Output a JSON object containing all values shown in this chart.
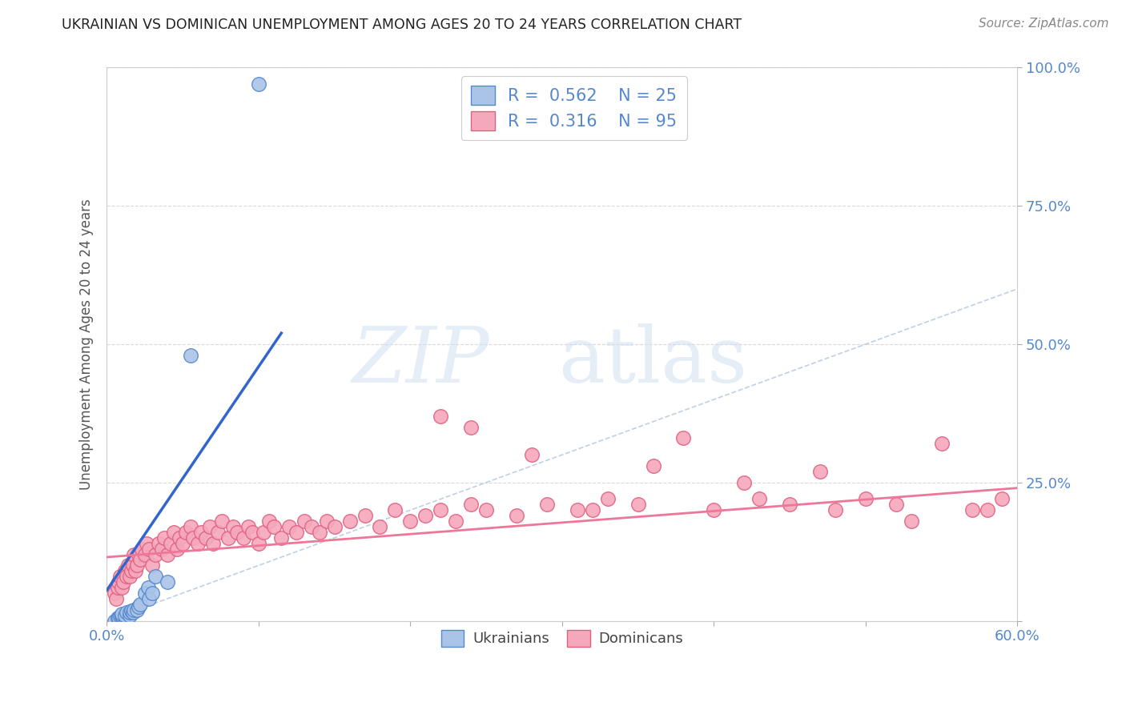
{
  "title": "UKRAINIAN VS DOMINICAN UNEMPLOYMENT AMONG AGES 20 TO 24 YEARS CORRELATION CHART",
  "source": "Source: ZipAtlas.com",
  "ylabel": "Unemployment Among Ages 20 to 24 years",
  "xlim": [
    0.0,
    0.6
  ],
  "ylim": [
    0.0,
    1.0
  ],
  "xtick_positions": [
    0.0,
    0.1,
    0.2,
    0.3,
    0.4,
    0.5,
    0.6
  ],
  "xtick_labels": [
    "0.0%",
    "",
    "",
    "",
    "",
    "",
    "60.0%"
  ],
  "ytick_positions": [
    0.0,
    0.25,
    0.5,
    0.75,
    1.0
  ],
  "ytick_labels": [
    "",
    "25.0%",
    "50.0%",
    "75.0%",
    "100.0%"
  ],
  "background_color": "#ffffff",
  "grid_color": "#d0d0d0",
  "ukrainian_color": "#aac4e8",
  "dominican_color": "#f5a8bc",
  "ukrainian_edge_color": "#5588cc",
  "dominican_edge_color": "#e06080",
  "trend_color_blue": "#3366cc",
  "trend_color_pink": "#ee7799",
  "diagonal_color": "#b0c4de",
  "tick_color": "#5588cc",
  "legend_label_ukr": "Ukrainians",
  "legend_label_dom": "Dominicans",
  "ukrainian_x": [
    0.005,
    0.007,
    0.008,
    0.009,
    0.01,
    0.01,
    0.01,
    0.012,
    0.013,
    0.015,
    0.015,
    0.016,
    0.017,
    0.018,
    0.02,
    0.021,
    0.022,
    0.025,
    0.027,
    0.028,
    0.03,
    0.032,
    0.04,
    0.055,
    0.1
  ],
  "ukrainian_y": [
    0.0,
    0.005,
    0.005,
    0.008,
    0.008,
    0.01,
    0.012,
    0.01,
    0.015,
    0.01,
    0.015,
    0.018,
    0.015,
    0.02,
    0.02,
    0.025,
    0.03,
    0.05,
    0.06,
    0.04,
    0.05,
    0.08,
    0.07,
    0.48,
    0.97
  ],
  "dominican_x": [
    0.005,
    0.006,
    0.007,
    0.008,
    0.009,
    0.01,
    0.011,
    0.012,
    0.013,
    0.014,
    0.015,
    0.016,
    0.017,
    0.018,
    0.019,
    0.02,
    0.021,
    0.022,
    0.023,
    0.025,
    0.026,
    0.028,
    0.03,
    0.032,
    0.034,
    0.036,
    0.038,
    0.04,
    0.042,
    0.044,
    0.046,
    0.048,
    0.05,
    0.052,
    0.055,
    0.057,
    0.06,
    0.062,
    0.065,
    0.068,
    0.07,
    0.073,
    0.076,
    0.08,
    0.083,
    0.086,
    0.09,
    0.093,
    0.096,
    0.1,
    0.103,
    0.107,
    0.11,
    0.115,
    0.12,
    0.125,
    0.13,
    0.135,
    0.14,
    0.145,
    0.15,
    0.16,
    0.17,
    0.18,
    0.19,
    0.2,
    0.21,
    0.22,
    0.23,
    0.24,
    0.25,
    0.27,
    0.29,
    0.31,
    0.33,
    0.35,
    0.38,
    0.4,
    0.43,
    0.45,
    0.48,
    0.5,
    0.52,
    0.55,
    0.57,
    0.59,
    0.22,
    0.24,
    0.28,
    0.32,
    0.36,
    0.42,
    0.47,
    0.53,
    0.58
  ],
  "dominican_y": [
    0.05,
    0.04,
    0.06,
    0.07,
    0.08,
    0.06,
    0.07,
    0.09,
    0.08,
    0.1,
    0.08,
    0.09,
    0.1,
    0.12,
    0.09,
    0.1,
    0.12,
    0.11,
    0.13,
    0.12,
    0.14,
    0.13,
    0.1,
    0.12,
    0.14,
    0.13,
    0.15,
    0.12,
    0.14,
    0.16,
    0.13,
    0.15,
    0.14,
    0.16,
    0.17,
    0.15,
    0.14,
    0.16,
    0.15,
    0.17,
    0.14,
    0.16,
    0.18,
    0.15,
    0.17,
    0.16,
    0.15,
    0.17,
    0.16,
    0.14,
    0.16,
    0.18,
    0.17,
    0.15,
    0.17,
    0.16,
    0.18,
    0.17,
    0.16,
    0.18,
    0.17,
    0.18,
    0.19,
    0.17,
    0.2,
    0.18,
    0.19,
    0.2,
    0.18,
    0.21,
    0.2,
    0.19,
    0.21,
    0.2,
    0.22,
    0.21,
    0.33,
    0.2,
    0.22,
    0.21,
    0.2,
    0.22,
    0.21,
    0.32,
    0.2,
    0.22,
    0.37,
    0.35,
    0.3,
    0.2,
    0.28,
    0.25,
    0.27,
    0.18,
    0.2
  ]
}
